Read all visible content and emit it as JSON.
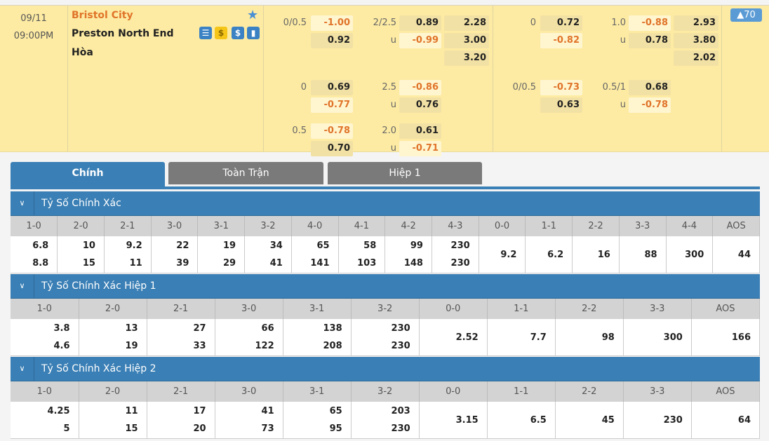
{
  "match": {
    "date": "09/11",
    "time": "09:00PM",
    "home": "Bristol City",
    "away": "Preston North End",
    "draw": "Hòa",
    "badge": "▲70",
    "icons": [
      "scoreboard-icon",
      "coin-icon",
      "dollar-icon",
      "stats-icon"
    ]
  },
  "odds_ft": {
    "rows": [
      {
        "hdp": "0/0.5",
        "hdp_home": "-1.00",
        "hdp_away": "0.92",
        "ou": "2/2.5",
        "ou_over": "0.89",
        "ou_u": "u",
        "ou_under": "-0.99",
        "x12": [
          "2.28",
          "3.00",
          "3.20"
        ]
      },
      {
        "hdp": "0",
        "hdp_home": "0.69",
        "hdp_away": "-0.77",
        "ou": "2.5",
        "ou_over": "-0.86",
        "ou_u": "u",
        "ou_under": "0.76"
      },
      {
        "hdp": "0.5",
        "hdp_home": "-0.78",
        "hdp_away": "0.70",
        "ou": "2.0",
        "ou_over": "0.61",
        "ou_u": "u",
        "ou_under": "-0.71"
      }
    ]
  },
  "odds_h1": {
    "rows": [
      {
        "hdp": "0",
        "hdp_home": "0.72",
        "hdp_away": "-0.82",
        "ou": "1.0",
        "ou_over": "-0.88",
        "ou_u": "u",
        "ou_under": "0.78",
        "x12": [
          "2.93",
          "3.80",
          "2.02"
        ]
      },
      {
        "hdp": "0/0.5",
        "hdp_home": "-0.73",
        "hdp_away": "0.63",
        "ou": "0.5/1",
        "ou_over": "0.68",
        "ou_u": "u",
        "ou_under": "-0.78"
      }
    ]
  },
  "tabs": [
    {
      "label": "Chính",
      "active": true
    },
    {
      "label": "Toàn Trận"
    },
    {
      "label": "Hiệp 1"
    }
  ],
  "sections": [
    {
      "title": "Tỷ Số Chính Xác",
      "headers": [
        "1-0",
        "2-0",
        "2-1",
        "3-0",
        "3-1",
        "3-2",
        "4-0",
        "4-1",
        "4-2",
        "4-3",
        "0-0",
        "1-1",
        "2-2",
        "3-3",
        "4-4",
        "AOS"
      ],
      "values": [
        [
          "6.8",
          "8.8"
        ],
        [
          "10",
          "15"
        ],
        [
          "9.2",
          "11"
        ],
        [
          "22",
          "39"
        ],
        [
          "19",
          "29"
        ],
        [
          "34",
          "41"
        ],
        [
          "65",
          "141"
        ],
        [
          "58",
          "103"
        ],
        [
          "99",
          "148"
        ],
        [
          "230",
          "230"
        ],
        [
          "9.2"
        ],
        [
          "6.2"
        ],
        [
          "16"
        ],
        [
          "88"
        ],
        [
          "300"
        ],
        [
          "44"
        ]
      ]
    },
    {
      "title": "Tỷ Số Chính Xác Hiệp 1",
      "headers": [
        "1-0",
        "2-0",
        "2-1",
        "3-0",
        "3-1",
        "3-2",
        "0-0",
        "1-1",
        "2-2",
        "3-3",
        "AOS"
      ],
      "values": [
        [
          "3.8",
          "4.6"
        ],
        [
          "13",
          "19"
        ],
        [
          "27",
          "33"
        ],
        [
          "66",
          "122"
        ],
        [
          "138",
          "208"
        ],
        [
          "230",
          "230"
        ],
        [
          "2.52"
        ],
        [
          "7.7"
        ],
        [
          "98"
        ],
        [
          "300"
        ],
        [
          "166"
        ]
      ]
    },
    {
      "title": "Tỷ Số Chính Xác Hiệp 2",
      "headers": [
        "1-0",
        "2-0",
        "2-1",
        "3-0",
        "3-1",
        "3-2",
        "0-0",
        "1-1",
        "2-2",
        "3-3",
        "AOS"
      ],
      "values": [
        [
          "4.25",
          "5"
        ],
        [
          "11",
          "15"
        ],
        [
          "17",
          "20"
        ],
        [
          "41",
          "73"
        ],
        [
          "65",
          "95"
        ],
        [
          "203",
          "230"
        ],
        [
          "3.15"
        ],
        [
          "6.5"
        ],
        [
          "45"
        ],
        [
          "230"
        ],
        [
          "64"
        ]
      ]
    }
  ],
  "colors": {
    "accent": "#3a7fb5",
    "negative": "#e0742a",
    "row_bg": "#fdeba3"
  }
}
